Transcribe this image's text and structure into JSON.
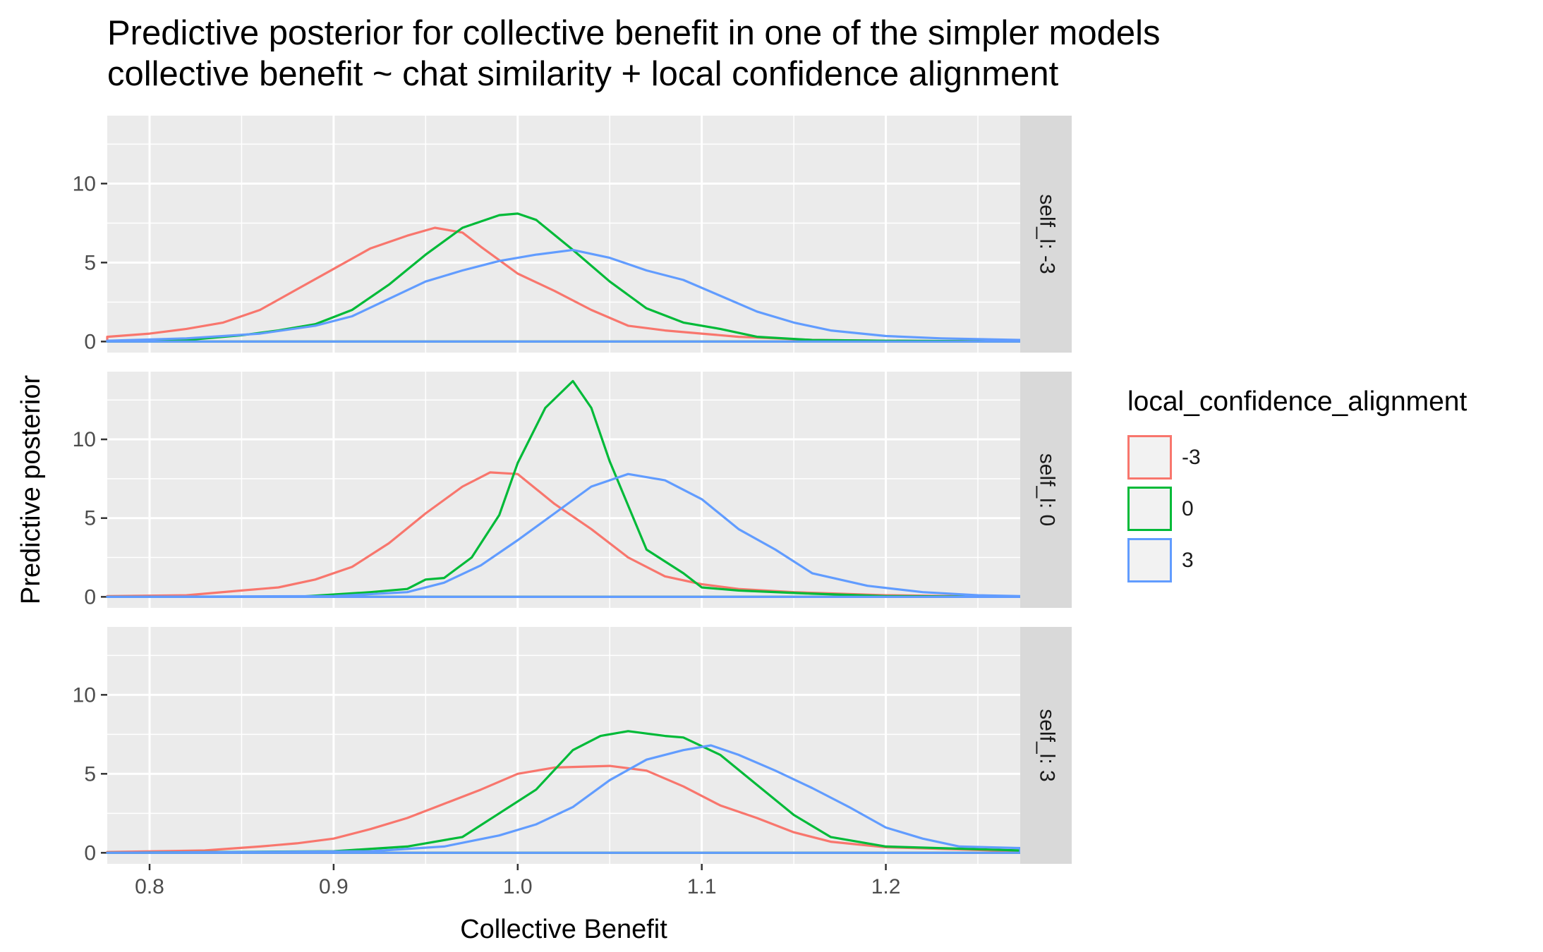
{
  "title_line1": "Predictive posterior for collective benefit in one of the simpler models",
  "title_line2": "collective benefit ~ chat similarity + local confidence alignment",
  "chart_data": {
    "type": "line",
    "xlabel": "Collective Benefit",
    "ylabel": "Predictive posterior",
    "xlim": [
      0.777,
      1.273
    ],
    "ylim": [
      -0.7,
      14.3
    ],
    "x_ticks": [
      "0.8",
      "0.9",
      "1.0",
      "1.1",
      "1.2"
    ],
    "y_ticks": [
      "0",
      "5",
      "10"
    ],
    "legend": {
      "title": "local_confidence_alignment",
      "position": "right",
      "entries": [
        {
          "label": "-3",
          "color": "#F8766D"
        },
        {
          "label": "0",
          "color": "#00BA38"
        },
        {
          "label": "3",
          "color": "#619CFF"
        }
      ]
    },
    "grid": true,
    "facets": [
      {
        "strip": "self_l: -3",
        "series": [
          {
            "name": "-3",
            "color": "#F8766D",
            "x": [
              0.777,
              0.8,
              0.82,
              0.84,
              0.86,
              0.88,
              0.9,
              0.92,
              0.94,
              0.955,
              0.97,
              0.98,
              1.0,
              1.02,
              1.04,
              1.06,
              1.08,
              1.1,
              1.12,
              1.14,
              1.16,
              1.2,
              1.273
            ],
            "y": [
              0.3,
              0.5,
              0.8,
              1.2,
              2.0,
              3.3,
              4.6,
              5.9,
              6.7,
              7.2,
              6.9,
              6.0,
              4.3,
              3.2,
              2.0,
              1.0,
              0.7,
              0.5,
              0.3,
              0.2,
              0.1,
              0.05,
              0.0
            ]
          },
          {
            "name": "0",
            "color": "#00BA38",
            "x": [
              0.777,
              0.82,
              0.85,
              0.87,
              0.89,
              0.91,
              0.93,
              0.95,
              0.97,
              0.99,
              1.0,
              1.01,
              1.03,
              1.05,
              1.07,
              1.09,
              1.11,
              1.13,
              1.16,
              1.2,
              1.273
            ],
            "y": [
              0.0,
              0.1,
              0.4,
              0.7,
              1.1,
              2.0,
              3.6,
              5.5,
              7.2,
              8.0,
              8.1,
              7.7,
              5.8,
              3.8,
              2.1,
              1.2,
              0.8,
              0.3,
              0.1,
              0.05,
              0.0
            ]
          },
          {
            "name": "3",
            "color": "#619CFF",
            "x": [
              0.777,
              0.82,
              0.86,
              0.89,
              0.91,
              0.93,
              0.95,
              0.97,
              0.99,
              1.01,
              1.03,
              1.05,
              1.07,
              1.09,
              1.11,
              1.13,
              1.15,
              1.17,
              1.2,
              1.23,
              1.273
            ],
            "y": [
              0.05,
              0.2,
              0.5,
              1.0,
              1.6,
              2.7,
              3.8,
              4.5,
              5.1,
              5.5,
              5.8,
              5.3,
              4.5,
              3.9,
              2.9,
              1.9,
              1.2,
              0.7,
              0.35,
              0.2,
              0.1
            ]
          }
        ]
      },
      {
        "strip": "self_l: 0",
        "series": [
          {
            "name": "-3",
            "color": "#F8766D",
            "x": [
              0.777,
              0.82,
              0.85,
              0.87,
              0.89,
              0.91,
              0.93,
              0.95,
              0.97,
              0.985,
              1.0,
              1.02,
              1.04,
              1.06,
              1.08,
              1.1,
              1.12,
              1.15,
              1.2,
              1.273
            ],
            "y": [
              0.05,
              0.1,
              0.4,
              0.6,
              1.1,
              1.9,
              3.4,
              5.3,
              7.0,
              7.9,
              7.8,
              5.9,
              4.3,
              2.5,
              1.3,
              0.8,
              0.5,
              0.3,
              0.1,
              0.0
            ]
          },
          {
            "name": "0",
            "color": "#00BA38",
            "x": [
              0.777,
              0.88,
              0.92,
              0.94,
              0.95,
              0.96,
              0.975,
              0.99,
              1.0,
              1.015,
              1.03,
              1.04,
              1.05,
              1.07,
              1.09,
              1.1,
              1.12,
              1.16,
              1.2,
              1.273
            ],
            "y": [
              0.0,
              0.0,
              0.3,
              0.5,
              1.1,
              1.2,
              2.5,
              5.2,
              8.5,
              12.0,
              13.7,
              12.0,
              8.6,
              3.0,
              1.5,
              0.6,
              0.4,
              0.2,
              0.05,
              0.0
            ]
          },
          {
            "name": "3",
            "color": "#619CFF",
            "x": [
              0.777,
              0.9,
              0.94,
              0.96,
              0.98,
              1.0,
              1.02,
              1.04,
              1.06,
              1.08,
              1.1,
              1.12,
              1.14,
              1.16,
              1.19,
              1.22,
              1.25,
              1.273
            ],
            "y": [
              0.0,
              0.05,
              0.3,
              0.9,
              2.0,
              3.6,
              5.3,
              7.0,
              7.8,
              7.4,
              6.2,
              4.3,
              3.0,
              1.5,
              0.7,
              0.3,
              0.1,
              0.05
            ]
          }
        ]
      },
      {
        "strip": "self_l: 3",
        "series": [
          {
            "name": "-3",
            "color": "#F8766D",
            "x": [
              0.777,
              0.83,
              0.86,
              0.88,
              0.9,
              0.92,
              0.94,
              0.96,
              0.98,
              1.0,
              1.02,
              1.05,
              1.07,
              1.09,
              1.11,
              1.13,
              1.15,
              1.17,
              1.2,
              1.273
            ],
            "y": [
              0.05,
              0.15,
              0.4,
              0.6,
              0.9,
              1.5,
              2.2,
              3.1,
              4.0,
              5.0,
              5.4,
              5.5,
              5.2,
              4.2,
              3.0,
              2.2,
              1.3,
              0.7,
              0.35,
              0.1
            ]
          },
          {
            "name": "0",
            "color": "#00BA38",
            "x": [
              0.777,
              0.9,
              0.94,
              0.97,
              0.99,
              1.01,
              1.03,
              1.045,
              1.06,
              1.08,
              1.09,
              1.11,
              1.13,
              1.15,
              1.17,
              1.2,
              1.273
            ],
            "y": [
              0.0,
              0.1,
              0.4,
              1.0,
              2.5,
              4.0,
              6.5,
              7.4,
              7.7,
              7.4,
              7.3,
              6.2,
              4.3,
              2.4,
              1.0,
              0.4,
              0.15
            ]
          },
          {
            "name": "3",
            "color": "#619CFF",
            "x": [
              0.777,
              0.92,
              0.96,
              0.99,
              1.01,
              1.03,
              1.05,
              1.07,
              1.09,
              1.105,
              1.12,
              1.14,
              1.16,
              1.18,
              1.2,
              1.22,
              1.24,
              1.273
            ],
            "y": [
              0.0,
              0.1,
              0.4,
              1.1,
              1.8,
              2.9,
              4.6,
              5.9,
              6.5,
              6.8,
              6.2,
              5.2,
              4.1,
              2.9,
              1.6,
              0.9,
              0.4,
              0.3
            ]
          }
        ]
      }
    ]
  }
}
